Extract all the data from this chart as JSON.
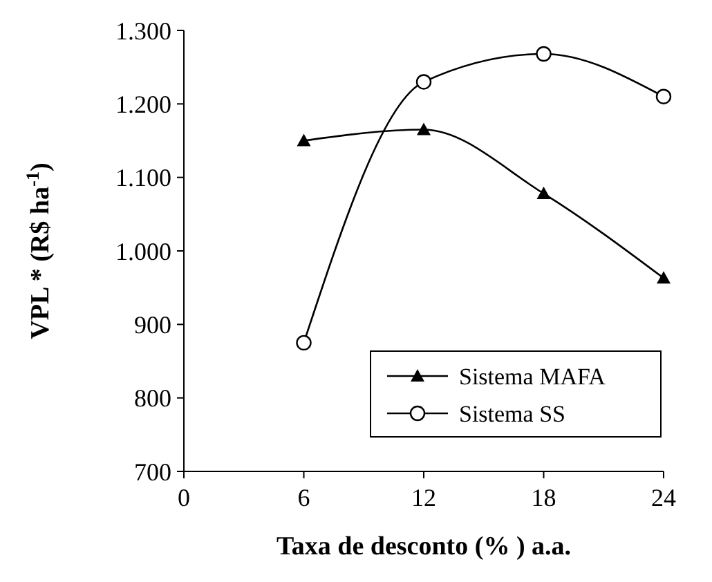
{
  "chart_data": {
    "type": "line",
    "xlabel": "Taxa de desconto (% ) a.a.",
    "ylabel": "VPL * (R$ ha$^{-1}$)",
    "x": [
      6,
      12,
      18,
      24
    ],
    "series": [
      {
        "name": "Sistema MAFA",
        "color": "#000000",
        "marker": "triangle",
        "values": [
          1150,
          1165,
          1078,
          963
        ]
      },
      {
        "name": "Sistema SS",
        "color": "#000000",
        "marker": "circle",
        "values": [
          875,
          1230,
          1268,
          1210
        ]
      }
    ],
    "xlim": [
      0,
      24
    ],
    "xticks": [
      0,
      6,
      12,
      18,
      24
    ],
    "ylim": [
      700,
      1300
    ],
    "yticks": [
      {
        "value": 700,
        "label": "700"
      },
      {
        "value": 800,
        "label": "800"
      },
      {
        "value": 900,
        "label": "900"
      },
      {
        "value": 1000,
        "label": "1.000"
      },
      {
        "value": 1100,
        "label": "1.100"
      },
      {
        "value": 1200,
        "label": "1.200"
      },
      {
        "value": 1300,
        "label": "1.300"
      }
    ],
    "grid": false,
    "legend": "bottom right"
  }
}
